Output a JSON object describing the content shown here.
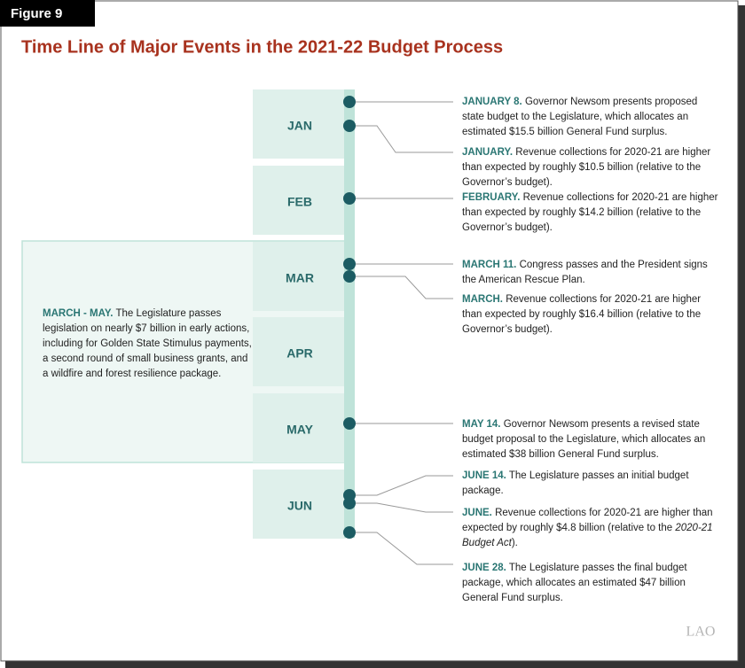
{
  "figure_label": "Figure 9",
  "title": "Time Line of Major Events in the 2021-22 Budget Process",
  "months": [
    "JAN",
    "FEB",
    "MAR",
    "APR",
    "MAY",
    "JUN"
  ],
  "side_note": {
    "lead": "MARCH - MAY.",
    "text": "The Legislature passes legislation on nearly $7 billion in early actions, including for Golden State Stimulus payments, a second round of small business grants, and a wildfire and forest resilience package."
  },
  "events": [
    {
      "lead": "JANUARY 8.",
      "text": "Governor Newsom presents proposed state budget to the Legislature, which allocates an estimated $15.5 billion General Fund surplus."
    },
    {
      "lead": "JANUARY.",
      "text": "Revenue collections for 2020-21 are higher than expected by roughly $10.5 billion (relative to the Governor’s budget)."
    },
    {
      "lead": "FEBRUARY.",
      "text": "Revenue collections for 2020-21 are higher than expected by roughly $14.2 billion (relative to the Governor’s budget)."
    },
    {
      "lead": "MARCH 11.",
      "text": "Congress passes and the President signs the American Rescue Plan."
    },
    {
      "lead": "MARCH.",
      "text": "Revenue collections for 2020-21 are higher than expected by roughly $16.4 billion (relative to the Governor’s budget)."
    },
    {
      "lead": "MAY 14.",
      "text": "Governor Newsom presents a revised state budget proposal to the Legislature, which allocates an estimated $38 billion General Fund surplus."
    },
    {
      "lead": "JUNE 14.",
      "text": "The Legislature passes an initial budget package."
    },
    {
      "lead": "JUNE.",
      "text": "Revenue collections for 2020-21 are higher than expected by roughly $4.8 billion (relative to the",
      "italic": "2020-21 Budget Act",
      "text_end": ")."
    },
    {
      "lead": "JUNE 28.",
      "text": "The Legislature passes the final budget package, which allocates an estimated $47 billion General Fund surplus."
    }
  ],
  "logo": "LAO"
}
